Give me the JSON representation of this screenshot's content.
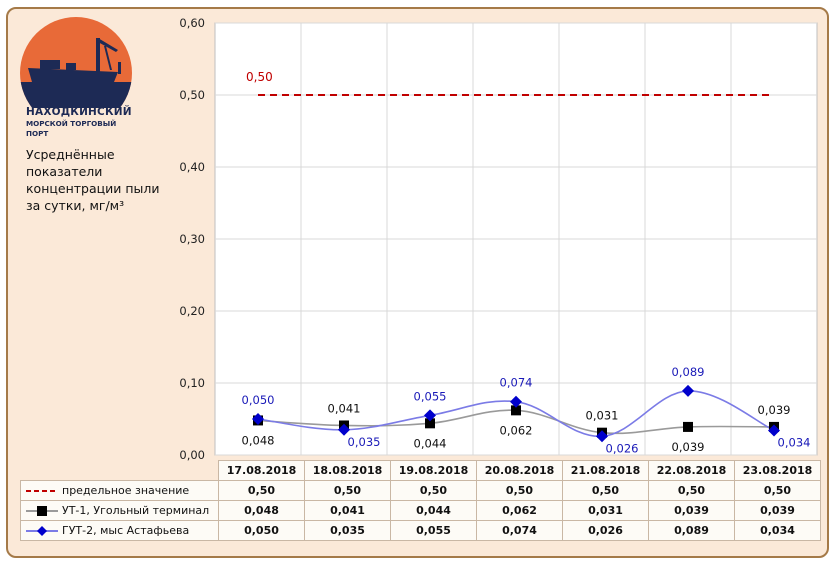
{
  "logo": {
    "line1": "НАХОДКИНСКИЙ",
    "line2": "МОРСКОЙ ТОРГОВЫЙ",
    "line3": "ПОРТ",
    "colors": {
      "sun": "#e86a38",
      "ship": "#1d2a55"
    }
  },
  "subtitle": "Усреднённые показатели концентрации пыли за сутки, мг/м³",
  "chart_data": {
    "type": "line",
    "categories": [
      "17.08.2018",
      "18.08.2018",
      "19.08.2018",
      "20.08.2018",
      "21.08.2018",
      "22.08.2018",
      "23.08.2018"
    ],
    "ylim": [
      0,
      0.6
    ],
    "yticks": [
      "0,00",
      "0,10",
      "0,20",
      "0,30",
      "0,40",
      "0,50",
      "0,60"
    ],
    "grid": true,
    "legend_position": "table-below",
    "series": [
      {
        "name": "предельное значение",
        "values": [
          0.5,
          0.5,
          0.5,
          0.5,
          0.5,
          0.5,
          0.5
        ],
        "labels": [
          "0,50",
          "0,50",
          "0,50",
          "0,50",
          "0,50",
          "0,50",
          "0,50"
        ],
        "color": "#c00000",
        "style": "dashed"
      },
      {
        "name": "УТ-1, Угольный терминал",
        "values": [
          0.048,
          0.041,
          0.044,
          0.062,
          0.031,
          0.039,
          0.039
        ],
        "labels": [
          "0,048",
          "0,041",
          "0,044",
          "0,062",
          "0,031",
          "0,039",
          "0,039"
        ],
        "color": "#9a9a9a",
        "marker": "square",
        "marker_color": "#000000"
      },
      {
        "name": "ГУТ-2, мыс Астафьева",
        "values": [
          0.05,
          0.035,
          0.055,
          0.074,
          0.026,
          0.089,
          0.034
        ],
        "labels": [
          "0,050",
          "0,035",
          "0,055",
          "0,074",
          "0,026",
          "0,089",
          "0,034"
        ],
        "color": "#7b7be6",
        "marker": "diamond",
        "marker_color": "#0000cc"
      }
    ],
    "annotations": [
      "0,50"
    ]
  }
}
